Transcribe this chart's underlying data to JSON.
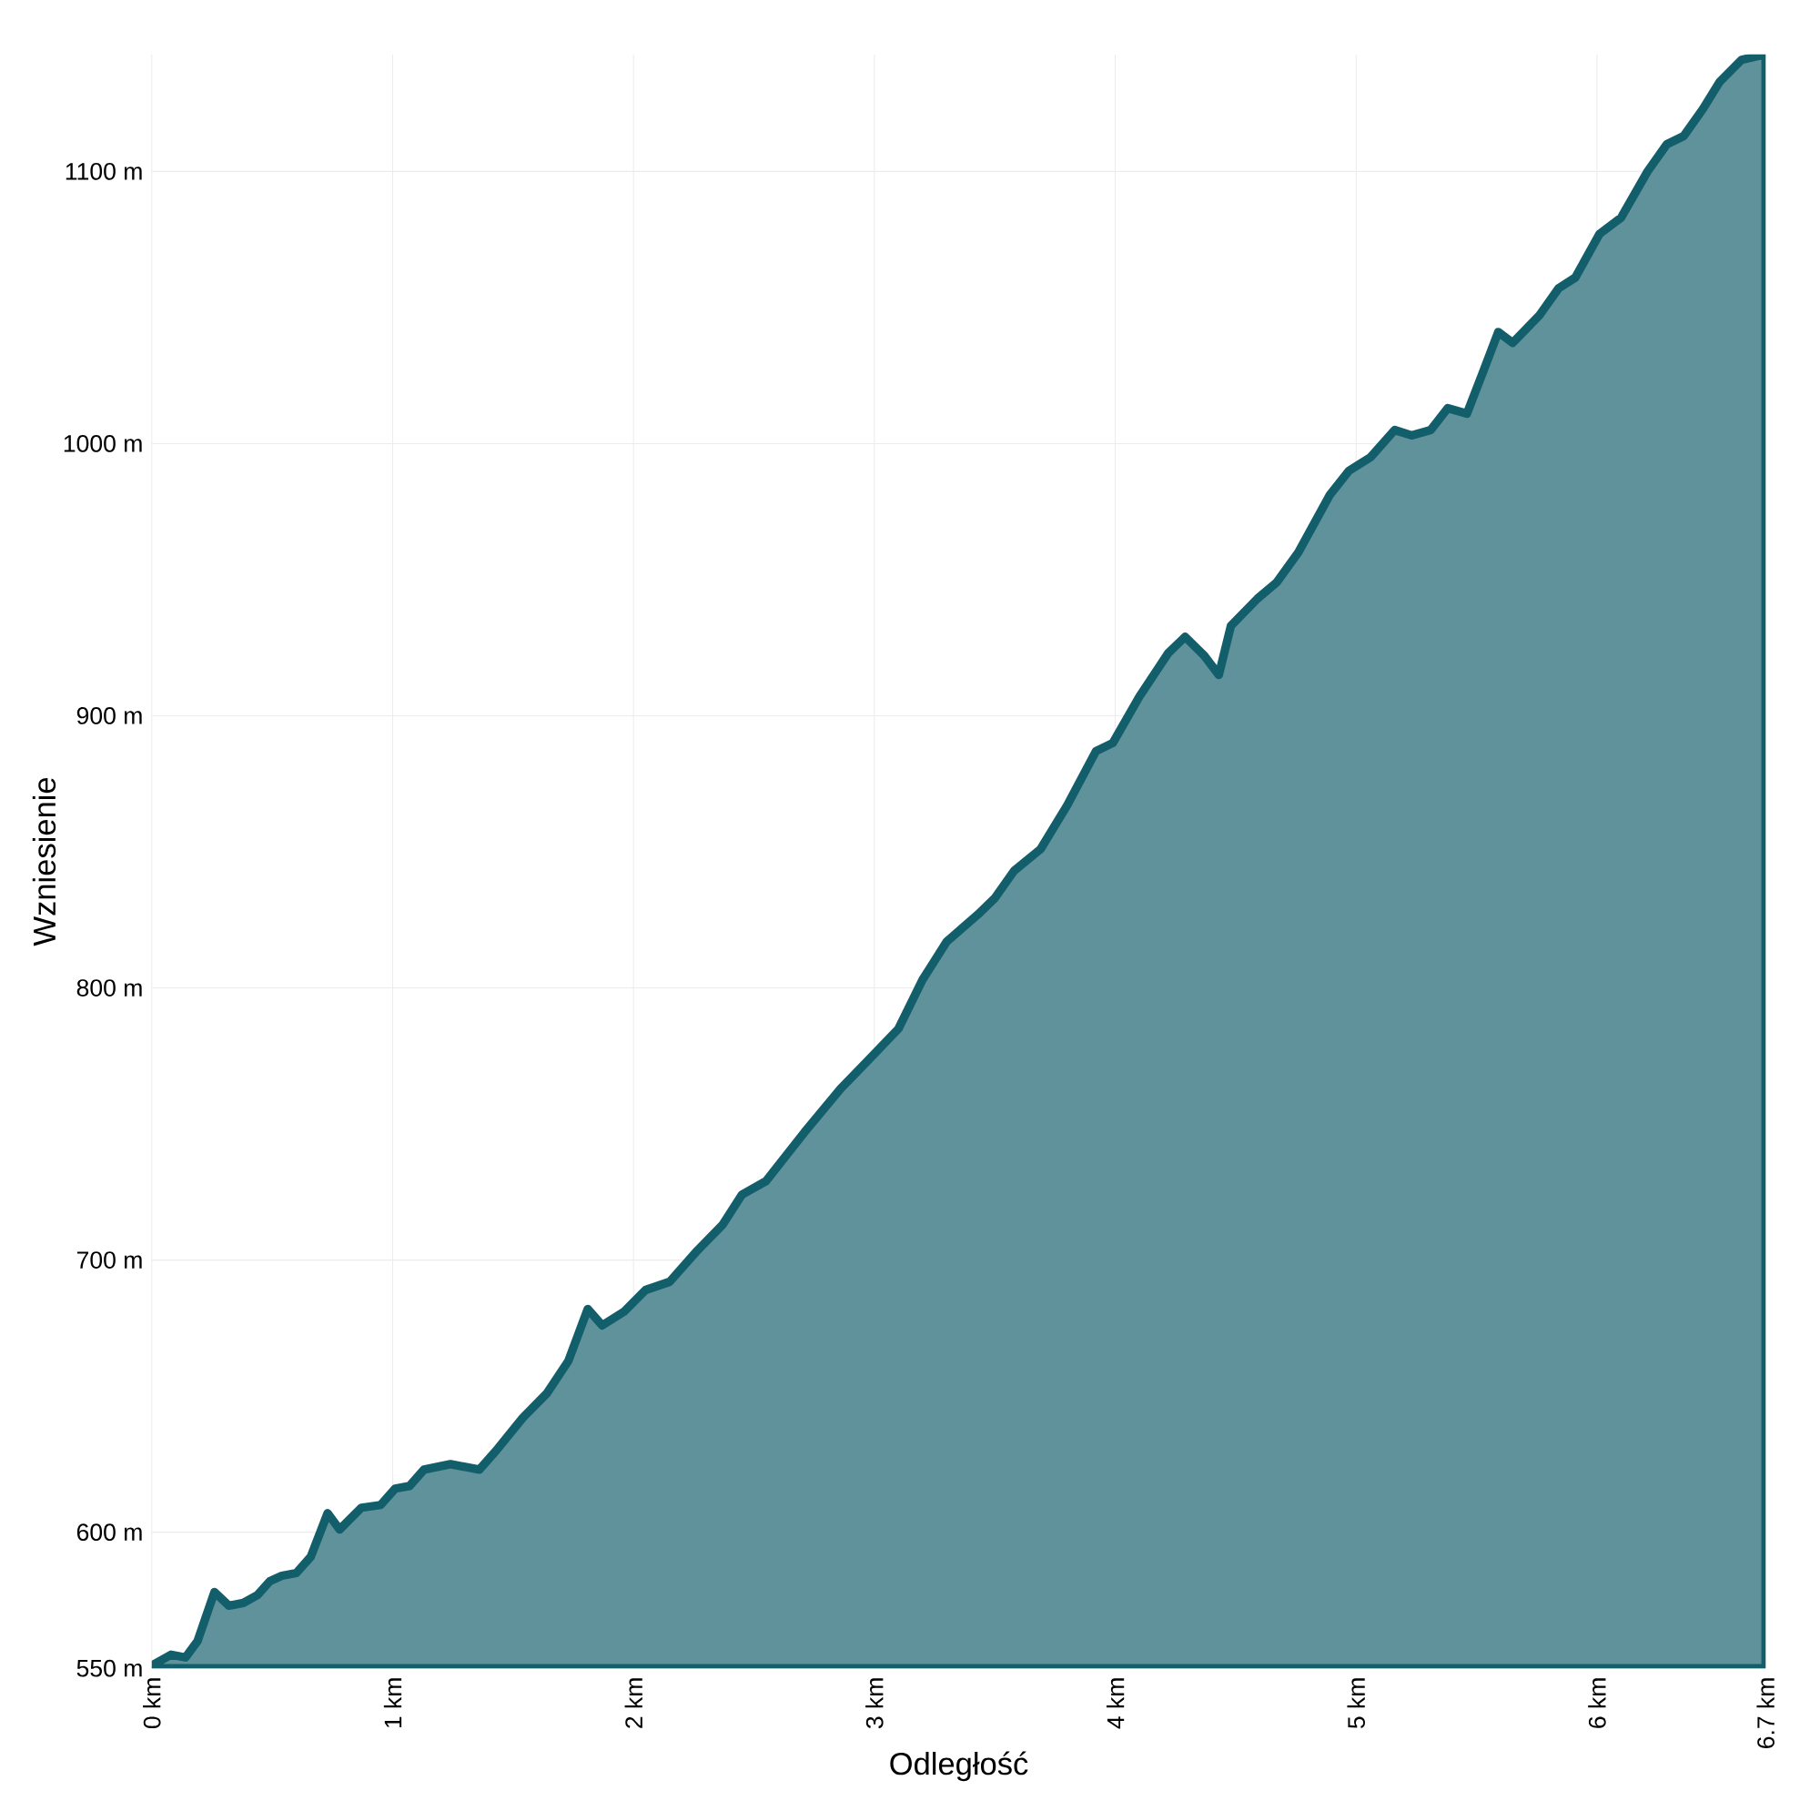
{
  "chart_data": {
    "type": "area",
    "xlabel": "Odległość",
    "ylabel": "Wzniesienie",
    "x": [
      0,
      0.08,
      0.14,
      0.19,
      0.26,
      0.32,
      0.38,
      0.44,
      0.49,
      0.54,
      0.6,
      0.66,
      0.73,
      0.78,
      0.87,
      0.95,
      1.01,
      1.07,
      1.13,
      1.24,
      1.36,
      1.43,
      1.54,
      1.64,
      1.73,
      1.81,
      1.87,
      1.96,
      2.05,
      2.15,
      2.26,
      2.37,
      2.45,
      2.55,
      2.71,
      2.86,
      2.97,
      3.1,
      3.2,
      3.3,
      3.43,
      3.5,
      3.58,
      3.69,
      3.8,
      3.92,
      3.99,
      4.1,
      4.22,
      4.29,
      4.37,
      4.43,
      4.48,
      4.59,
      4.67,
      4.76,
      4.89,
      4.97,
      5.06,
      5.16,
      5.23,
      5.31,
      5.38,
      5.46,
      5.53,
      5.59,
      5.65,
      5.76,
      5.84,
      5.91,
      6.01,
      6.1,
      6.21,
      6.29,
      6.36,
      6.44,
      6.51,
      6.6,
      6.7
    ],
    "series": [
      {
        "color": "#135e6b",
        "values": [
          551,
          555,
          554,
          560,
          578,
          573,
          574,
          577,
          582,
          584,
          585,
          591,
          607,
          601,
          609,
          610,
          616,
          617,
          623,
          625,
          623,
          630,
          642,
          651,
          663,
          682,
          676,
          681,
          689,
          692,
          703,
          713,
          724,
          729,
          747,
          763,
          773,
          785,
          803,
          817,
          827,
          833,
          843,
          851,
          867,
          887,
          890,
          907,
          923,
          929,
          922,
          915,
          933,
          943,
          949,
          960,
          981,
          990,
          995,
          1005,
          1003,
          1005,
          1013,
          1011,
          1027,
          1041,
          1037,
          1047,
          1057,
          1061,
          1077,
          1083,
          1100,
          1110,
          1113,
          1123,
          1133,
          1141,
          1143
        ]
      }
    ],
    "xlim": [
      0,
      6.7
    ],
    "ylim": [
      550,
      1143
    ],
    "xticks": [
      {
        "value": 0,
        "label": "0 km"
      },
      {
        "value": 1,
        "label": "1 km"
      },
      {
        "value": 2,
        "label": "2 km"
      },
      {
        "value": 3,
        "label": "3 km"
      },
      {
        "value": 4,
        "label": "4 km"
      },
      {
        "value": 5,
        "label": "5 km"
      },
      {
        "value": 6,
        "label": "6 km"
      },
      {
        "value": 6.7,
        "label": "6.7 km"
      }
    ],
    "yticks": [
      {
        "value": 550,
        "label": "550 m"
      },
      {
        "value": 600,
        "label": "600 m"
      },
      {
        "value": 700,
        "label": "700 m"
      },
      {
        "value": 800,
        "label": "800 m"
      },
      {
        "value": 900,
        "label": "900 m"
      },
      {
        "value": 1000,
        "label": "1000 m"
      },
      {
        "value": 1100,
        "label": "1100 m"
      }
    ],
    "grid": true
  }
}
